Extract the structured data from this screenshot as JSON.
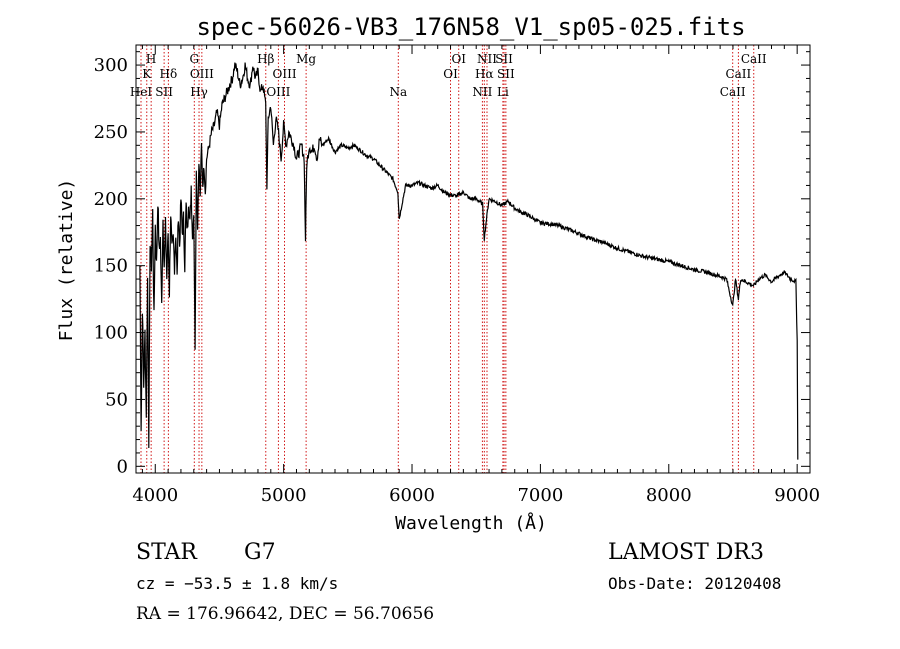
{
  "chart_data": {
    "type": "line",
    "title": "spec-56026-VB3_176N58_V1_sp05-025.fits",
    "xlabel": "Wavelength (Å)",
    "ylabel": "Flux (relative)",
    "xlim": [
      3850,
      9100
    ],
    "ylim": [
      -5,
      315
    ],
    "xticks": [
      4000,
      5000,
      6000,
      7000,
      8000,
      9000
    ],
    "yticks": [
      0,
      50,
      100,
      150,
      200,
      250,
      300
    ],
    "series": [
      {
        "name": "flux",
        "x": [
          3880,
          3890,
          3900,
          3910,
          3920,
          3930,
          3940,
          3950,
          3960,
          3970,
          3980,
          3990,
          4000,
          4010,
          4020,
          4030,
          4040,
          4050,
          4060,
          4070,
          4080,
          4090,
          4100,
          4110,
          4120,
          4130,
          4140,
          4150,
          4160,
          4170,
          4180,
          4190,
          4200,
          4210,
          4220,
          4230,
          4240,
          4250,
          4260,
          4270,
          4280,
          4290,
          4300,
          4310,
          4320,
          4330,
          4340,
          4350,
          4360,
          4370,
          4380,
          4390,
          4400,
          4420,
          4440,
          4460,
          4480,
          4500,
          4520,
          4540,
          4560,
          4580,
          4600,
          4620,
          4640,
          4660,
          4680,
          4700,
          4720,
          4740,
          4760,
          4780,
          4800,
          4820,
          4840,
          4860,
          4870,
          4880,
          4900,
          4920,
          4940,
          4960,
          4980,
          5000,
          5020,
          5040,
          5060,
          5080,
          5100,
          5120,
          5140,
          5160,
          5170,
          5180,
          5200,
          5220,
          5240,
          5260,
          5280,
          5300,
          5350,
          5400,
          5450,
          5500,
          5550,
          5600,
          5650,
          5700,
          5750,
          5800,
          5850,
          5890,
          5900,
          5950,
          6000,
          6050,
          6100,
          6150,
          6200,
          6250,
          6300,
          6350,
          6400,
          6450,
          6500,
          6550,
          6563,
          6580,
          6600,
          6650,
          6700,
          6750,
          6800,
          6850,
          6900,
          6950,
          7000,
          7100,
          7200,
          7300,
          7400,
          7500,
          7600,
          7700,
          7800,
          7900,
          8000,
          8100,
          8200,
          8300,
          8400,
          8450,
          8498,
          8520,
          8542,
          8560,
          8600,
          8662,
          8700,
          8750,
          8800,
          8850,
          8900,
          8950,
          8990,
          9000,
          9005
        ],
        "values": [
          150,
          30,
          120,
          60,
          100,
          40,
          140,
          20,
          170,
          150,
          190,
          110,
          180,
          150,
          200,
          160,
          170,
          120,
          185,
          150,
          180,
          140,
          175,
          130,
          190,
          160,
          170,
          150,
          175,
          140,
          190,
          165,
          200,
          175,
          185,
          150,
          195,
          175,
          200,
          180,
          210,
          170,
          190,
          90,
          220,
          180,
          230,
          200,
          240,
          210,
          225,
          205,
          230,
          240,
          250,
          255,
          265,
          255,
          270,
          275,
          280,
          285,
          290,
          300,
          295,
          285,
          290,
          300,
          290,
          285,
          300,
          290,
          295,
          280,
          285,
          270,
          210,
          260,
          270,
          240,
          260,
          250,
          230,
          255,
          240,
          250,
          245,
          240,
          230,
          235,
          240,
          230,
          170,
          225,
          240,
          235,
          240,
          230,
          245,
          240,
          245,
          235,
          240,
          238,
          240,
          236,
          232,
          230,
          225,
          220,
          215,
          205,
          185,
          210,
          210,
          212,
          210,
          208,
          210,
          205,
          203,
          202,
          205,
          200,
          200,
          196,
          170,
          185,
          200,
          198,
          195,
          198,
          193,
          190,
          188,
          185,
          182,
          181,
          178,
          174,
          170,
          167,
          163,
          160,
          157,
          155,
          153,
          150,
          147,
          145,
          142,
          140,
          120,
          140,
          125,
          140,
          138,
          135,
          140,
          143,
          138,
          142,
          145,
          140,
          138,
          95,
          5
        ]
      }
    ],
    "spectral_lines": [
      {
        "label": "H",
        "tier": 1,
        "wl": 3968
      },
      {
        "label": "K",
        "tier": 2,
        "wl": 3934
      },
      {
        "label": "HeI",
        "tier": 3,
        "wl": 3889
      },
      {
        "label": "SII",
        "tier": 3,
        "wl": 4069
      },
      {
        "label": "Hδ",
        "tier": 2,
        "wl": 4102
      },
      {
        "label": "G",
        "tier": 1,
        "wl": 4304
      },
      {
        "label": "OIII",
        "tier": 2,
        "wl": 4363
      },
      {
        "label": "Hγ",
        "tier": 3,
        "wl": 4341
      },
      {
        "label": "Hβ",
        "tier": 1,
        "wl": 4861
      },
      {
        "label": "OIII",
        "tier": 2,
        "wl": 5007
      },
      {
        "label": "OIII",
        "tier": 3,
        "wl": 4959
      },
      {
        "label": "Mg",
        "tier": 1,
        "wl": 5175
      },
      {
        "label": "Na",
        "tier": 3,
        "wl": 5893
      },
      {
        "label": "OI",
        "tier": 1,
        "wl": 6364
      },
      {
        "label": "OI",
        "tier": 2,
        "wl": 6300
      },
      {
        "label": "NII",
        "tier": 1,
        "wl": 6584
      },
      {
        "label": "SII",
        "tier": 1,
        "wl": 6717
      },
      {
        "label": "Hα",
        "tier": 2,
        "wl": 6563
      },
      {
        "label": "SII",
        "tier": 2,
        "wl": 6731
      },
      {
        "label": "NII",
        "tier": 3,
        "wl": 6548
      },
      {
        "label": "Li",
        "tier": 3,
        "wl": 6708
      },
      {
        "label": "CaII",
        "tier": 1,
        "wl": 8662
      },
      {
        "label": "CaII",
        "tier": 2,
        "wl": 8542
      },
      {
        "label": "CaII",
        "tier": 3,
        "wl": 8498
      }
    ],
    "line_color": "#000000",
    "marker_color": "#cc0000"
  },
  "info": {
    "object_class": "STAR",
    "subclass": "G7",
    "survey": "LAMOST DR3",
    "redshift": "cz = −53.5 ± 1.8 km/s",
    "obs_date": "Obs-Date: 20120408",
    "coords": "RA = 176.96642, DEC =  56.70656"
  }
}
